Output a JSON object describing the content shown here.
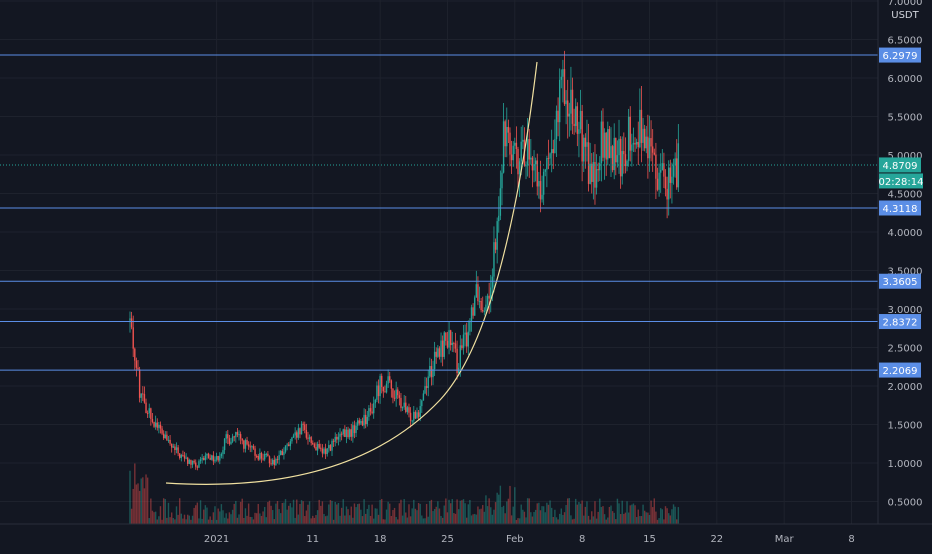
{
  "chart_data": {
    "type": "candlestick",
    "quote_unit": "USDT",
    "ylim": [
      0.2,
      7.0
    ],
    "y_ticks": [
      "0.5000",
      "1.0000",
      "1.5000",
      "2.0000",
      "2.5000",
      "3.0000",
      "3.5000",
      "4.0000",
      "4.5000",
      "5.0000",
      "5.5000",
      "6.0000",
      "6.5000",
      "7.0000"
    ],
    "x_ticks": [
      "2021",
      "11",
      "18",
      "25",
      "Feb",
      "8",
      "15",
      "22",
      "Mar",
      "8"
    ],
    "x_tick_dates": [
      "2021-01-01",
      "2021-01-11",
      "2021-01-18",
      "2021-01-25",
      "2021-02-01",
      "2021-02-08",
      "2021-02-15",
      "2021-02-22",
      "2021-03-01",
      "2021-03-08"
    ],
    "date_range": [
      "2020-12-23",
      "2021-03-11"
    ],
    "last_price": "4.8709",
    "countdown": "02:28:14",
    "horizontal_levels": [
      {
        "value": 6.2979,
        "label": "6.2979"
      },
      {
        "value": 4.3118,
        "label": "4.3118"
      },
      {
        "value": 3.3605,
        "label": "3.3605"
      },
      {
        "value": 2.8372,
        "label": "2.8372"
      },
      {
        "value": 2.2069,
        "label": "2.2069"
      }
    ],
    "price_anchors": [
      [
        "2020-12-23",
        2.85
      ],
      [
        "2020-12-24",
        1.95
      ],
      [
        "2020-12-25",
        1.65
      ],
      [
        "2020-12-26",
        1.45
      ],
      [
        "2020-12-27",
        1.25
      ],
      [
        "2020-12-28",
        1.12
      ],
      [
        "2020-12-29",
        1.02
      ],
      [
        "2020-12-30",
        0.95
      ],
      [
        "2020-12-31",
        1.1
      ],
      [
        "2021-01-01",
        1.05
      ],
      [
        "2021-01-02",
        1.3
      ],
      [
        "2021-01-03",
        1.35
      ],
      [
        "2021-01-05",
        1.12
      ],
      [
        "2021-01-07",
        1.02
      ],
      [
        "2021-01-08",
        1.15
      ],
      [
        "2021-01-09",
        1.3
      ],
      [
        "2021-01-10",
        1.45
      ],
      [
        "2021-01-11",
        1.25
      ],
      [
        "2021-01-12",
        1.12
      ],
      [
        "2021-01-13",
        1.25
      ],
      [
        "2021-01-14",
        1.35
      ],
      [
        "2021-01-15",
        1.4
      ],
      [
        "2021-01-16",
        1.55
      ],
      [
        "2021-01-17",
        1.65
      ],
      [
        "2021-01-18",
        2.05
      ],
      [
        "2021-01-19",
        2.0
      ],
      [
        "2021-01-20",
        1.8
      ],
      [
        "2021-01-21",
        1.6
      ],
      [
        "2021-01-22",
        1.7
      ],
      [
        "2021-01-23",
        2.15
      ],
      [
        "2021-01-24",
        2.4
      ],
      [
        "2021-01-25",
        2.65
      ],
      [
        "2021-01-26",
        2.3
      ],
      [
        "2021-01-27",
        2.65
      ],
      [
        "2021-01-28",
        3.3
      ],
      [
        "2021-01-29",
        3.0
      ],
      [
        "2021-01-30",
        3.9
      ],
      [
        "2021-01-31",
        5.4
      ],
      [
        "2021-02-01",
        4.9
      ],
      [
        "2021-02-02",
        5.1
      ],
      [
        "2021-02-03",
        4.8
      ],
      [
        "2021-02-04",
        4.6
      ],
      [
        "2021-02-05",
        5.3
      ],
      [
        "2021-02-06",
        5.9
      ],
      [
        "2021-02-07",
        5.7
      ],
      [
        "2021-02-08",
        5.2
      ],
      [
        "2021-02-09",
        4.7
      ],
      [
        "2021-02-10",
        5.2
      ],
      [
        "2021-02-11",
        5.0
      ],
      [
        "2021-02-12",
        4.9
      ],
      [
        "2021-02-13",
        5.3
      ],
      [
        "2021-02-14",
        5.4
      ],
      [
        "2021-02-15",
        5.0
      ],
      [
        "2021-02-16",
        4.8
      ],
      [
        "2021-02-17",
        4.65
      ],
      [
        "2021-02-18",
        4.87
      ]
    ],
    "grid": true,
    "volume_bars": true
  }
}
